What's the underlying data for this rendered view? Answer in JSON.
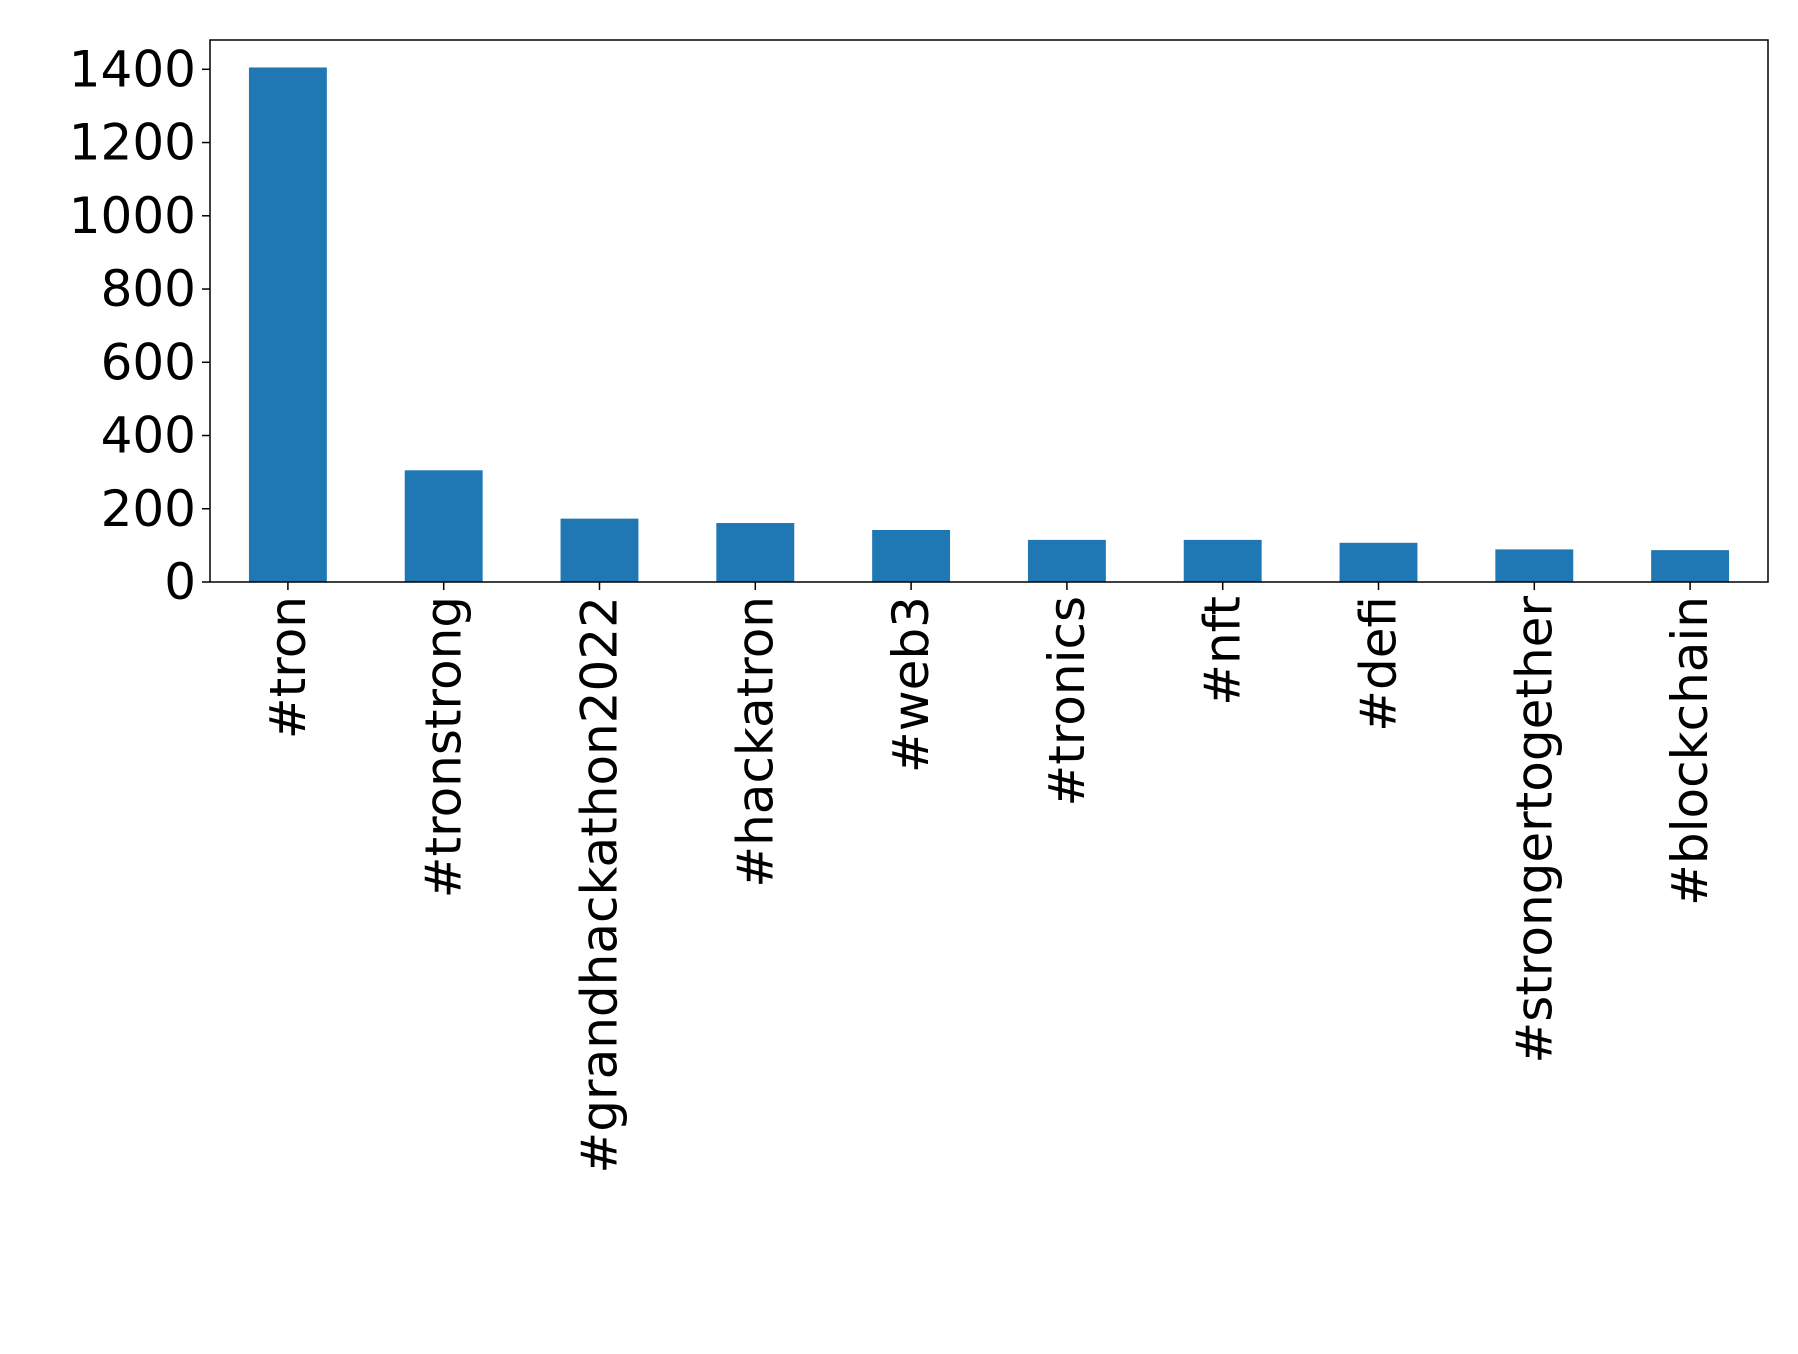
{
  "chart_data": {
    "type": "bar",
    "title": "",
    "xlabel": "",
    "ylabel": "",
    "categories": [
      "#tron",
      "#tronstrong",
      "#grandhackathon2022",
      "#hackatron",
      "#web3",
      "#tronics",
      "#nft",
      "#defi",
      "#strongertogether",
      "#blockchain"
    ],
    "values": [
      1405,
      305,
      173,
      161,
      142,
      115,
      115,
      107,
      89,
      87
    ],
    "ylim": [
      0,
      1480
    ],
    "yticks": [
      0,
      200,
      400,
      600,
      800,
      1000,
      1200,
      1400
    ],
    "ytick_labels": [
      "0",
      "200",
      "400",
      "600",
      "800",
      "1000",
      "1200",
      "1400"
    ],
    "bar_color": "#1f77b4",
    "grid": false,
    "legend": "none"
  }
}
